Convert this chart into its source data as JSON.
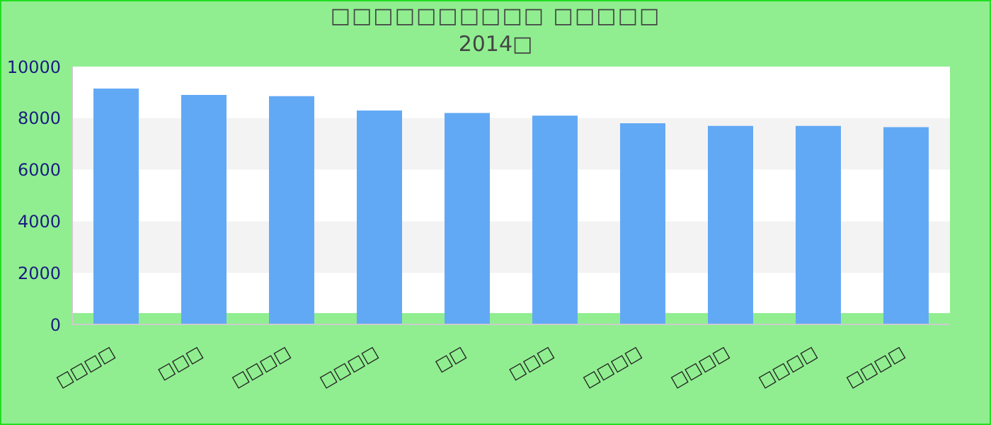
{
  "chart_data": {
    "type": "bar",
    "title": "□□□□□□□□□□ □□□□□",
    "subtitle": "2014□",
    "categories": [
      "□□□□",
      "□□□",
      "□□□□",
      "□□□□",
      "□□",
      "□□□",
      "□□□□",
      "□□□□",
      "□□□□",
      "□□□□"
    ],
    "values": [
      9150,
      8900,
      8850,
      8300,
      8200,
      8100,
      7800,
      7700,
      7700,
      7650
    ],
    "color": "#62a9f5",
    "ylim": [
      0,
      10000
    ],
    "yticks": [
      0,
      2000,
      4000,
      6000,
      8000,
      10000
    ],
    "bands": [
      {
        "axis": "y",
        "from": 2000,
        "to": 4000,
        "color": "#f3f3f3"
      },
      {
        "axis": "y",
        "from": 6000,
        "to": 8000,
        "color": "#f3f3f3"
      }
    ]
  }
}
